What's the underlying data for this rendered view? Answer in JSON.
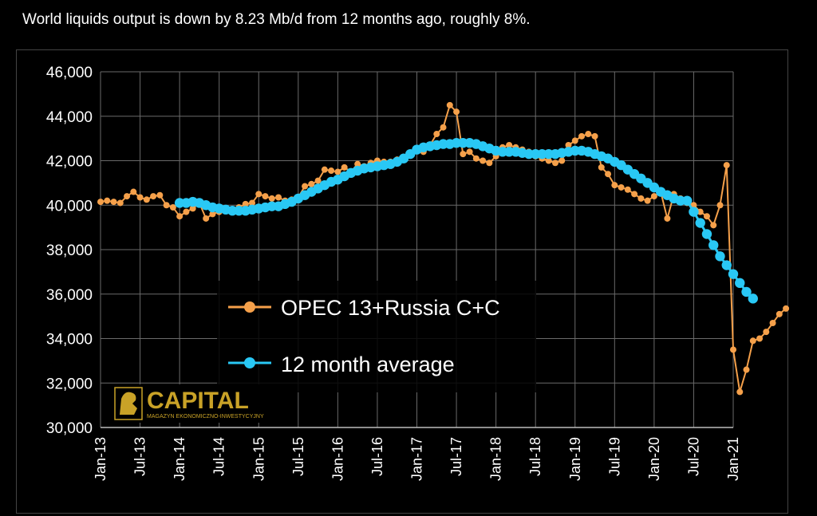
{
  "headline": "World liquids output is down by 8.23 Mb/d from 12 months ago, roughly 8%.",
  "logo": {
    "text": "CAPITAL",
    "subtitle": "MAGAZYN EKONOMICZNO-INWESTYCYJNY",
    "color": "#c9a227"
  },
  "chart_data": {
    "type": "line",
    "title": "",
    "xlabel": "",
    "ylabel": "",
    "ylim": [
      30000,
      46000
    ],
    "yticks": [
      "46,000",
      "44,000",
      "42,000",
      "40,000",
      "38,000",
      "36,000",
      "34,000",
      "32,000",
      "30,000"
    ],
    "ytick_values": [
      46000,
      44000,
      42000,
      40000,
      38000,
      36000,
      34000,
      32000,
      30000
    ],
    "xticks": [
      "Jan-13",
      "Jul-13",
      "Jan-14",
      "Jul-14",
      "Jan-15",
      "Jul-15",
      "Jan-16",
      "Jul-16",
      "Jan-17",
      "Jul-17",
      "Jan-18",
      "Jul-18",
      "Jan-19",
      "Jul-19",
      "Jan-20",
      "Jul-20",
      "Jan-21"
    ],
    "xtick_months": [
      0,
      6,
      12,
      18,
      24,
      30,
      36,
      42,
      48,
      54,
      60,
      66,
      72,
      78,
      84,
      90,
      96
    ],
    "grid": true,
    "legend_position": "center",
    "series": [
      {
        "name": "OPEC 13+Russia C+C",
        "color": "#f5a04a",
        "start_month": 0,
        "values": [
          40150,
          40200,
          40150,
          40100,
          40400,
          40600,
          40350,
          40250,
          40400,
          40450,
          40000,
          39900,
          39500,
          39700,
          39850,
          40100,
          39400,
          39600,
          39700,
          39750,
          39800,
          39900,
          40050,
          40100,
          40500,
          40400,
          40300,
          40350,
          40200,
          40250,
          40350,
          40850,
          40950,
          41100,
          41600,
          41550,
          41500,
          41700,
          41500,
          41850,
          41750,
          41900,
          42000,
          41950,
          41950,
          42050,
          42100,
          42300,
          42450,
          42400,
          42700,
          43200,
          43500,
          44500,
          44200,
          42300,
          42400,
          42100,
          42000,
          41900,
          42200,
          42600,
          42700,
          42600,
          42500,
          42400,
          42200,
          42100,
          42000,
          41900,
          42000,
          42700,
          42900,
          43100,
          43200,
          43100,
          41700,
          41400,
          40900,
          40800,
          40700,
          40500,
          40300,
          40200,
          40400,
          40600,
          39400,
          40500,
          40300,
          40100,
          40000,
          39700,
          39500,
          39100,
          40000,
          41800,
          33500,
          31600,
          32600,
          33900,
          34000,
          34300,
          34700,
          35100,
          35350
        ]
      },
      {
        "name": "12 month average",
        "color": "#29c8f5",
        "start_month": 12,
        "values": [
          40100,
          40100,
          40150,
          40100,
          40000,
          39900,
          39850,
          39800,
          39750,
          39750,
          39750,
          39800,
          39850,
          39900,
          39950,
          39950,
          40050,
          40150,
          40300,
          40450,
          40600,
          40750,
          40900,
          41050,
          41150,
          41300,
          41450,
          41550,
          41650,
          41700,
          41750,
          41800,
          41850,
          41950,
          42100,
          42300,
          42500,
          42600,
          42650,
          42700,
          42750,
          42750,
          42800,
          42800,
          42800,
          42750,
          42650,
          42550,
          42450,
          42400,
          42400,
          42400,
          42350,
          42300,
          42300,
          42300,
          42300,
          42300,
          42350,
          42400,
          42450,
          42450,
          42400,
          42300,
          42200,
          42100,
          41950,
          41800,
          41600,
          41400,
          41200,
          41000,
          40800,
          40600,
          40450,
          40300,
          40200,
          40200,
          39700,
          39200,
          38700,
          38200,
          37700,
          37300,
          36900,
          36500,
          36100,
          35800
        ]
      }
    ]
  }
}
